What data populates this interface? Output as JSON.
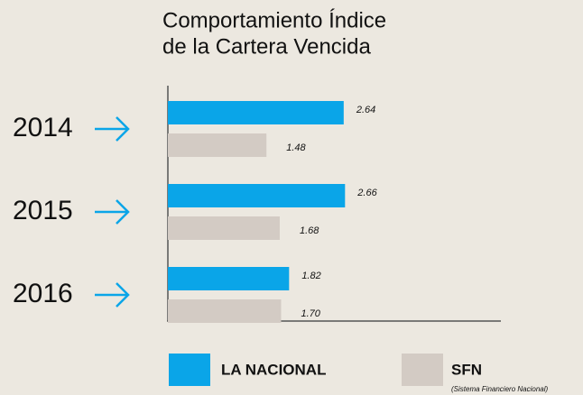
{
  "chart_data": {
    "type": "hbar",
    "title": [
      "Comportamiento  Índice",
      "de la Cartera Vencida"
    ],
    "categories": [
      "2014",
      "2015",
      "2016"
    ],
    "series": [
      {
        "name": "LA NACIONAL",
        "color": "#0aa5e8",
        "values": [
          2.64,
          2.66,
          1.82
        ]
      },
      {
        "name": "SFN",
        "color": "#d3cbc4",
        "values": [
          1.48,
          1.68,
          1.7
        ],
        "value_labels": [
          "1.48",
          "1.68",
          "1.70"
        ]
      }
    ],
    "legend_note": "(Sistema Financiero Nacional)",
    "xlim": [
      0,
      5
    ],
    "arrow_color": "#0aa5e8"
  }
}
